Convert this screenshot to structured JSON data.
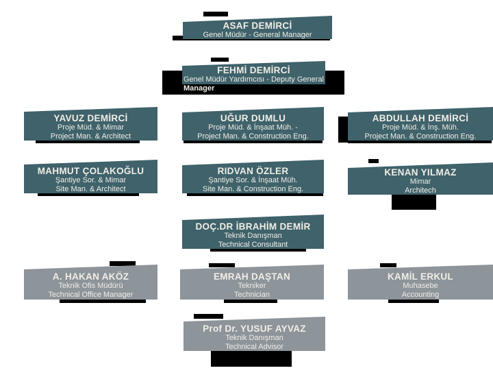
{
  "colors": {
    "teal": "#3f626b",
    "gray": "#8d949a",
    "black": "#000000",
    "text": "#f1eee6",
    "background": "#ffffff"
  },
  "org_chart": {
    "nodes": {
      "asaf": {
        "name": "ASAF DEMİRCİ",
        "lines": [
          "Genel Müdür - General Manager"
        ]
      },
      "fehmi": {
        "name": "FEHMİ DEMİRCİ",
        "lines": [
          "Genel Müdür Yardımcısı - Deputy General",
          "Manager"
        ]
      },
      "yavuz": {
        "name": "YAVUZ DEMİRCİ",
        "lines": [
          "Proje Müd. & Mimar",
          "Project Man. & Architect"
        ]
      },
      "ugur": {
        "name": "UĞUR DUMLU",
        "lines": [
          "Proje Müd. & İnşaat Müh. -",
          "Project Man. & Construction Eng."
        ]
      },
      "abdullah": {
        "name": "ABDULLAH DEMİRCİ",
        "lines": [
          "Proje Müd. & İnş. Müh.",
          "Project Man. & Construction Eng."
        ]
      },
      "mahmut": {
        "name": "MAHMUT ÇOLAKOĞLU",
        "lines": [
          "Şantiye Sor. & Mimar",
          "Site Man. & Architect"
        ]
      },
      "ridvan": {
        "name": "RIDVAN ÖZLER",
        "lines": [
          "Şantiye Sor. & İnşaat Müh.",
          "Site Man. & Construction Eng."
        ]
      },
      "kenan": {
        "name": "KENAN YILMAZ",
        "lines": [
          "Mimar",
          "Architech"
        ]
      },
      "ibrahim": {
        "name": "DOÇ.DR İBRAHİM DEMİR",
        "lines": [
          "Teknik Danışman",
          "Technical Consultant"
        ]
      },
      "hakan": {
        "name": "A. HAKAN AKÖZ",
        "lines": [
          "Teknik Ofis Müdürü",
          "Technical Office Manager"
        ]
      },
      "emrah": {
        "name": "EMRAH DAŞTAN",
        "lines": [
          "Tekniker",
          "Technician"
        ]
      },
      "kamil": {
        "name": "KAMİL ERKUL",
        "lines": [
          "Muhasebe",
          "Accounting"
        ]
      },
      "yusuf": {
        "name": "Prof Dr. YUSUF AYVAZ",
        "lines": [
          "Teknik Danışman",
          "Technical Advisor"
        ]
      }
    }
  }
}
